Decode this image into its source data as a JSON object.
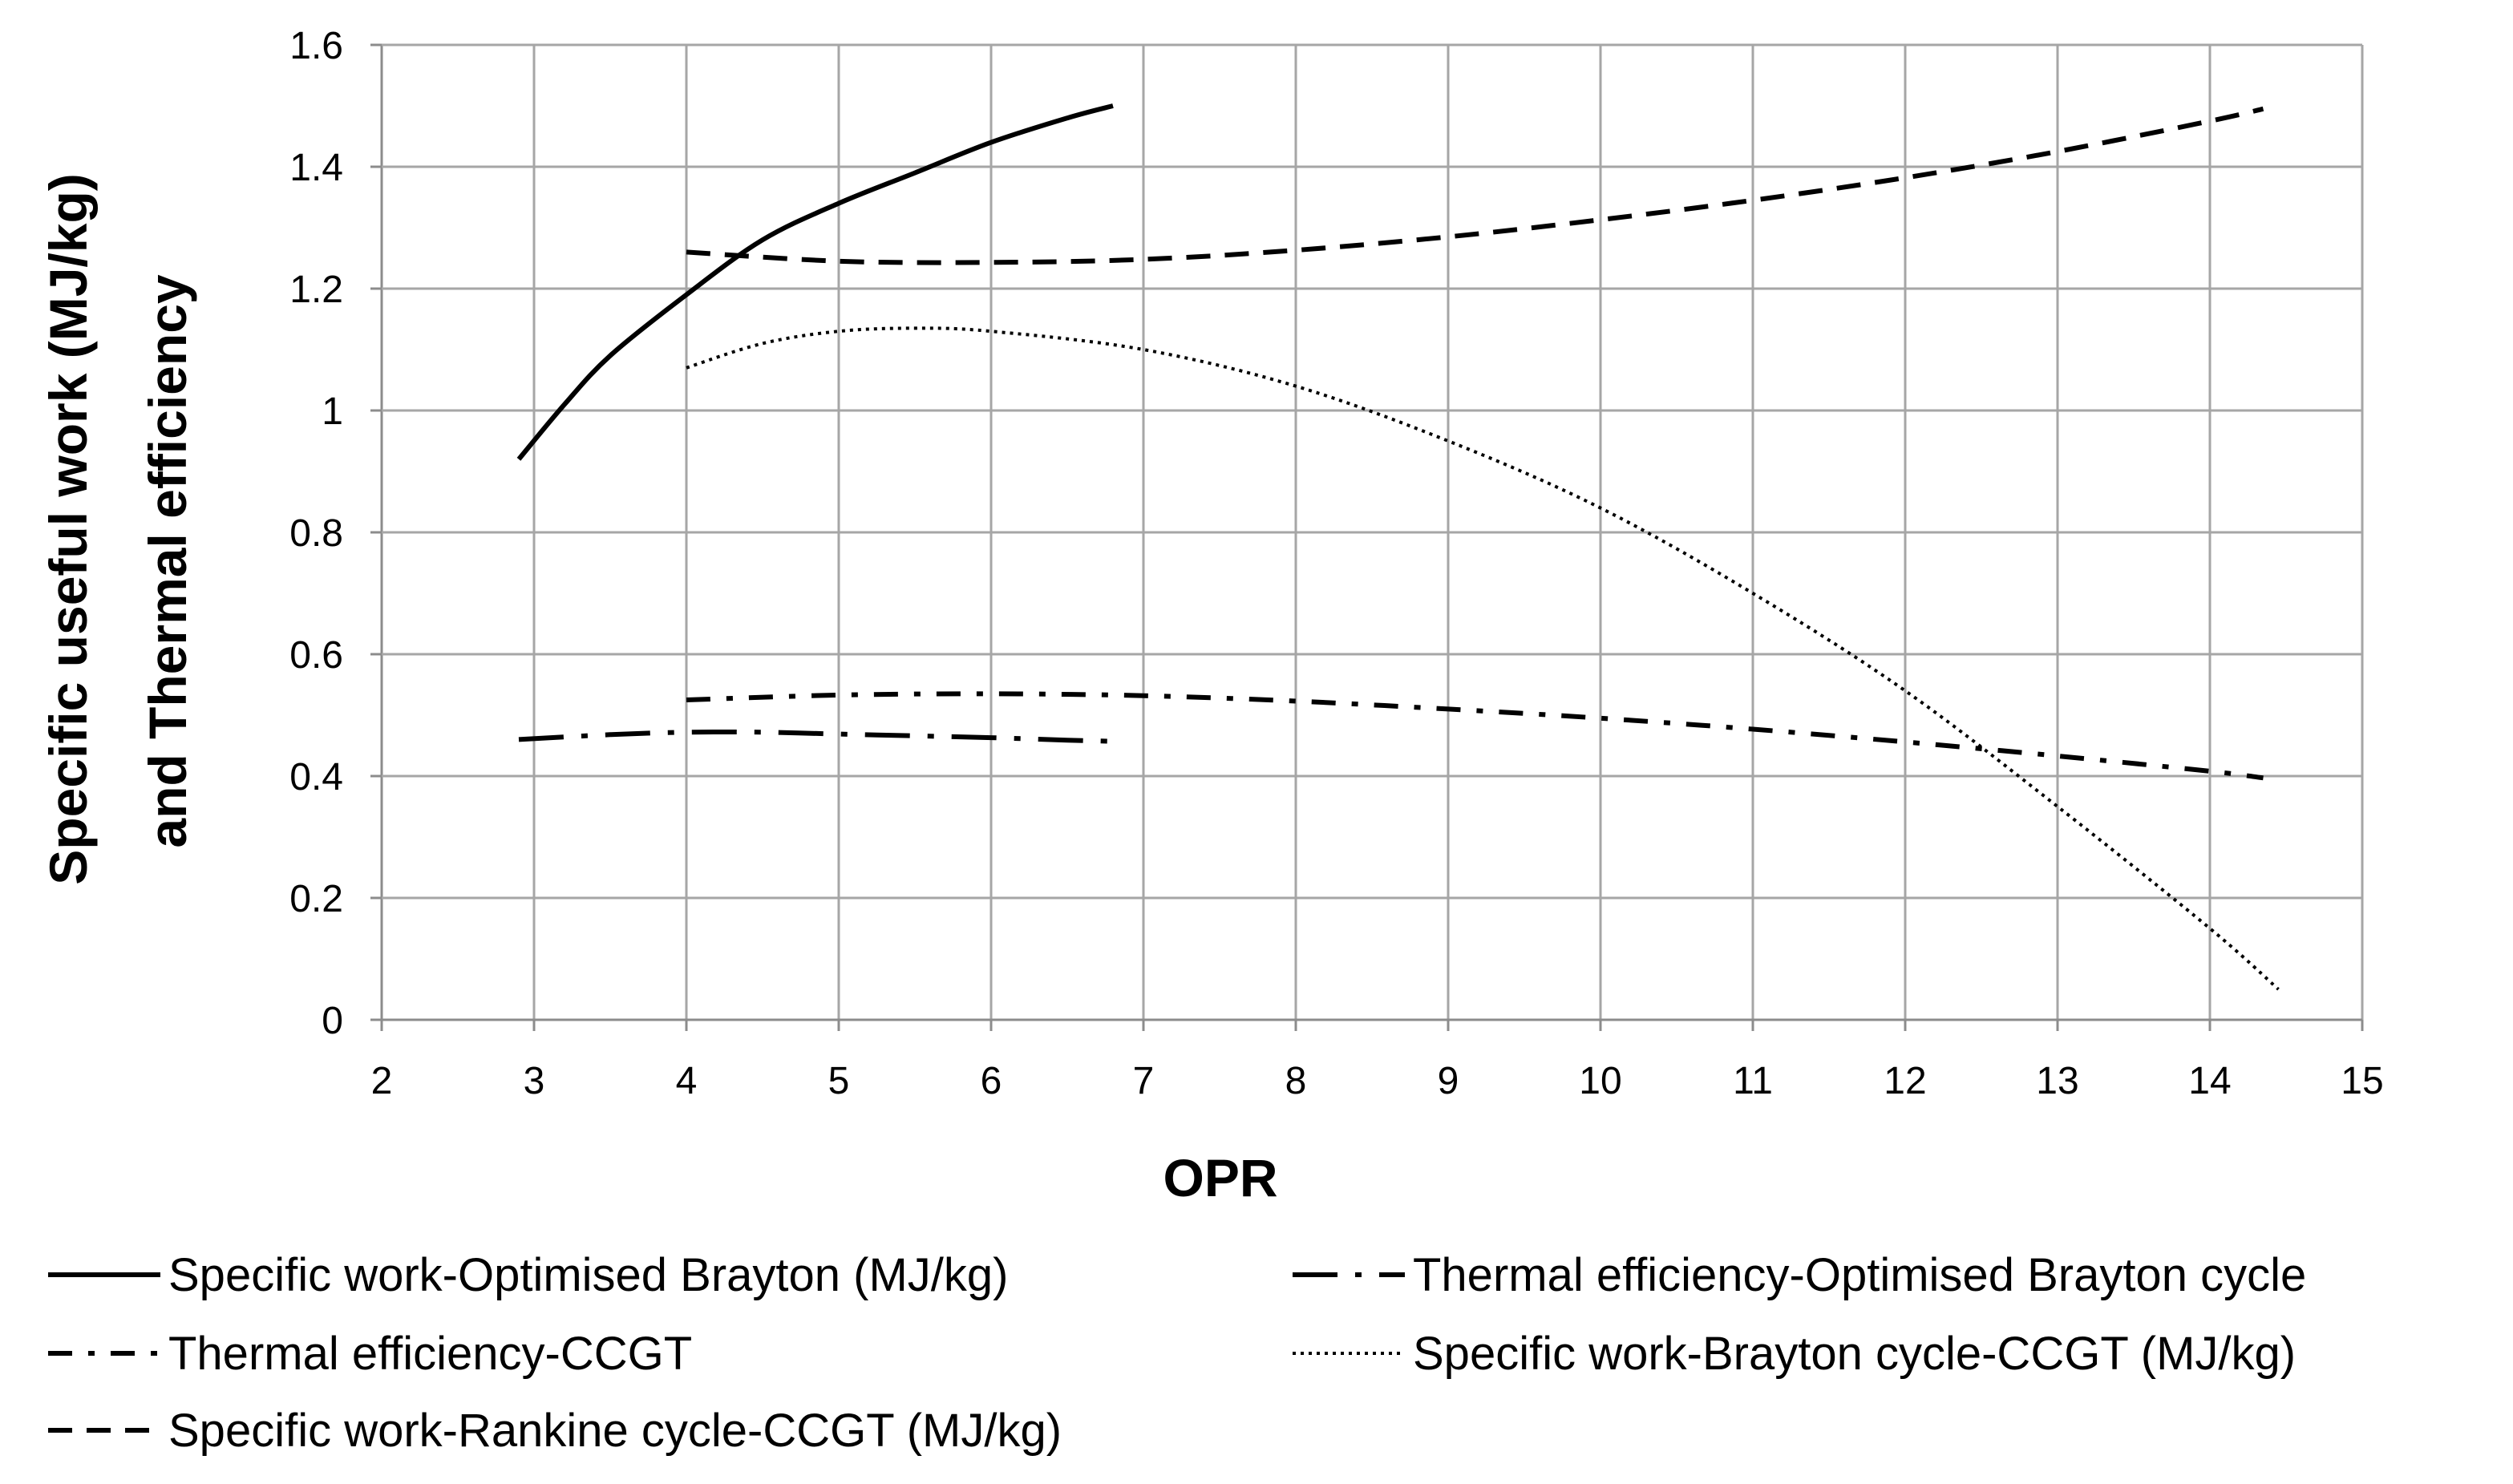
{
  "chart_data": {
    "type": "line",
    "title": "",
    "xlabel": "OPR",
    "ylabel_line1": "Specific useful work (MJ/kg)",
    "ylabel_line2": "and Thermal efficiency",
    "xlim": [
      2,
      15
    ],
    "ylim": [
      0,
      1.6
    ],
    "x_ticks": [
      2,
      3,
      4,
      5,
      6,
      7,
      8,
      9,
      10,
      11,
      12,
      13,
      14,
      15
    ],
    "x_tick_labels": [
      "2",
      "3",
      "4",
      "5",
      "6",
      "7",
      "8",
      "9",
      "10",
      "11",
      "12",
      "13",
      "14",
      "15"
    ],
    "y_ticks": [
      0,
      0.2,
      0.4,
      0.6,
      0.8,
      1,
      1.2,
      1.4,
      1.6
    ],
    "y_tick_labels": [
      "0",
      "0.2",
      "0.4",
      "0.6",
      "0.8",
      "1",
      "1.2",
      "1.4",
      "1.6"
    ],
    "grid": true,
    "legend_position": "bottom",
    "series": [
      {
        "name": "Specific work-Optimised Brayton (MJ/kg)",
        "style": "solid",
        "x": [
          2.9,
          3.2,
          3.5,
          4.0,
          4.5,
          5.0,
          5.5,
          6.0,
          6.5,
          6.8
        ],
        "y": [
          0.92,
          1.01,
          1.09,
          1.19,
          1.28,
          1.34,
          1.39,
          1.44,
          1.48,
          1.5
        ]
      },
      {
        "name": "Thermal efficiency-Optimised Brayton cycle",
        "style": "longdash-dot",
        "x": [
          2.9,
          3.5,
          4.0,
          4.5,
          5.0,
          5.5,
          6.0,
          6.5,
          6.8
        ],
        "y": [
          0.46,
          0.468,
          0.472,
          0.472,
          0.469,
          0.466,
          0.463,
          0.459,
          0.457
        ]
      },
      {
        "name": "Thermal efficiency-CCGT",
        "style": "dash-dot",
        "x": [
          4.0,
          5.0,
          6.0,
          7.0,
          8.0,
          9.0,
          10.0,
          11.0,
          12.0,
          13.0,
          14.0,
          14.35
        ],
        "y": [
          0.525,
          0.533,
          0.535,
          0.532,
          0.523,
          0.51,
          0.495,
          0.477,
          0.456,
          0.433,
          0.408,
          0.397
        ]
      },
      {
        "name": "Specific work-Brayton cycle-CCGT (MJ/kg)",
        "style": "dotted",
        "x": [
          4.0,
          4.5,
          5.0,
          5.5,
          6.0,
          7.0,
          8.0,
          9.0,
          10.0,
          11.0,
          12.0,
          13.0,
          14.0,
          14.45
        ],
        "y": [
          1.07,
          1.11,
          1.13,
          1.135,
          1.13,
          1.1,
          1.04,
          0.95,
          0.84,
          0.7,
          0.54,
          0.35,
          0.15,
          0.05
        ]
      },
      {
        "name": "Specific work-Rankine cycle-CCGT (MJ/kg)",
        "style": "dashed",
        "x": [
          4.0,
          5.0,
          6.0,
          7.0,
          8.0,
          9.0,
          10.0,
          11.0,
          12.0,
          13.0,
          14.0,
          14.35
        ],
        "y": [
          1.26,
          1.245,
          1.243,
          1.248,
          1.263,
          1.285,
          1.313,
          1.345,
          1.382,
          1.425,
          1.475,
          1.495
        ]
      }
    ]
  }
}
